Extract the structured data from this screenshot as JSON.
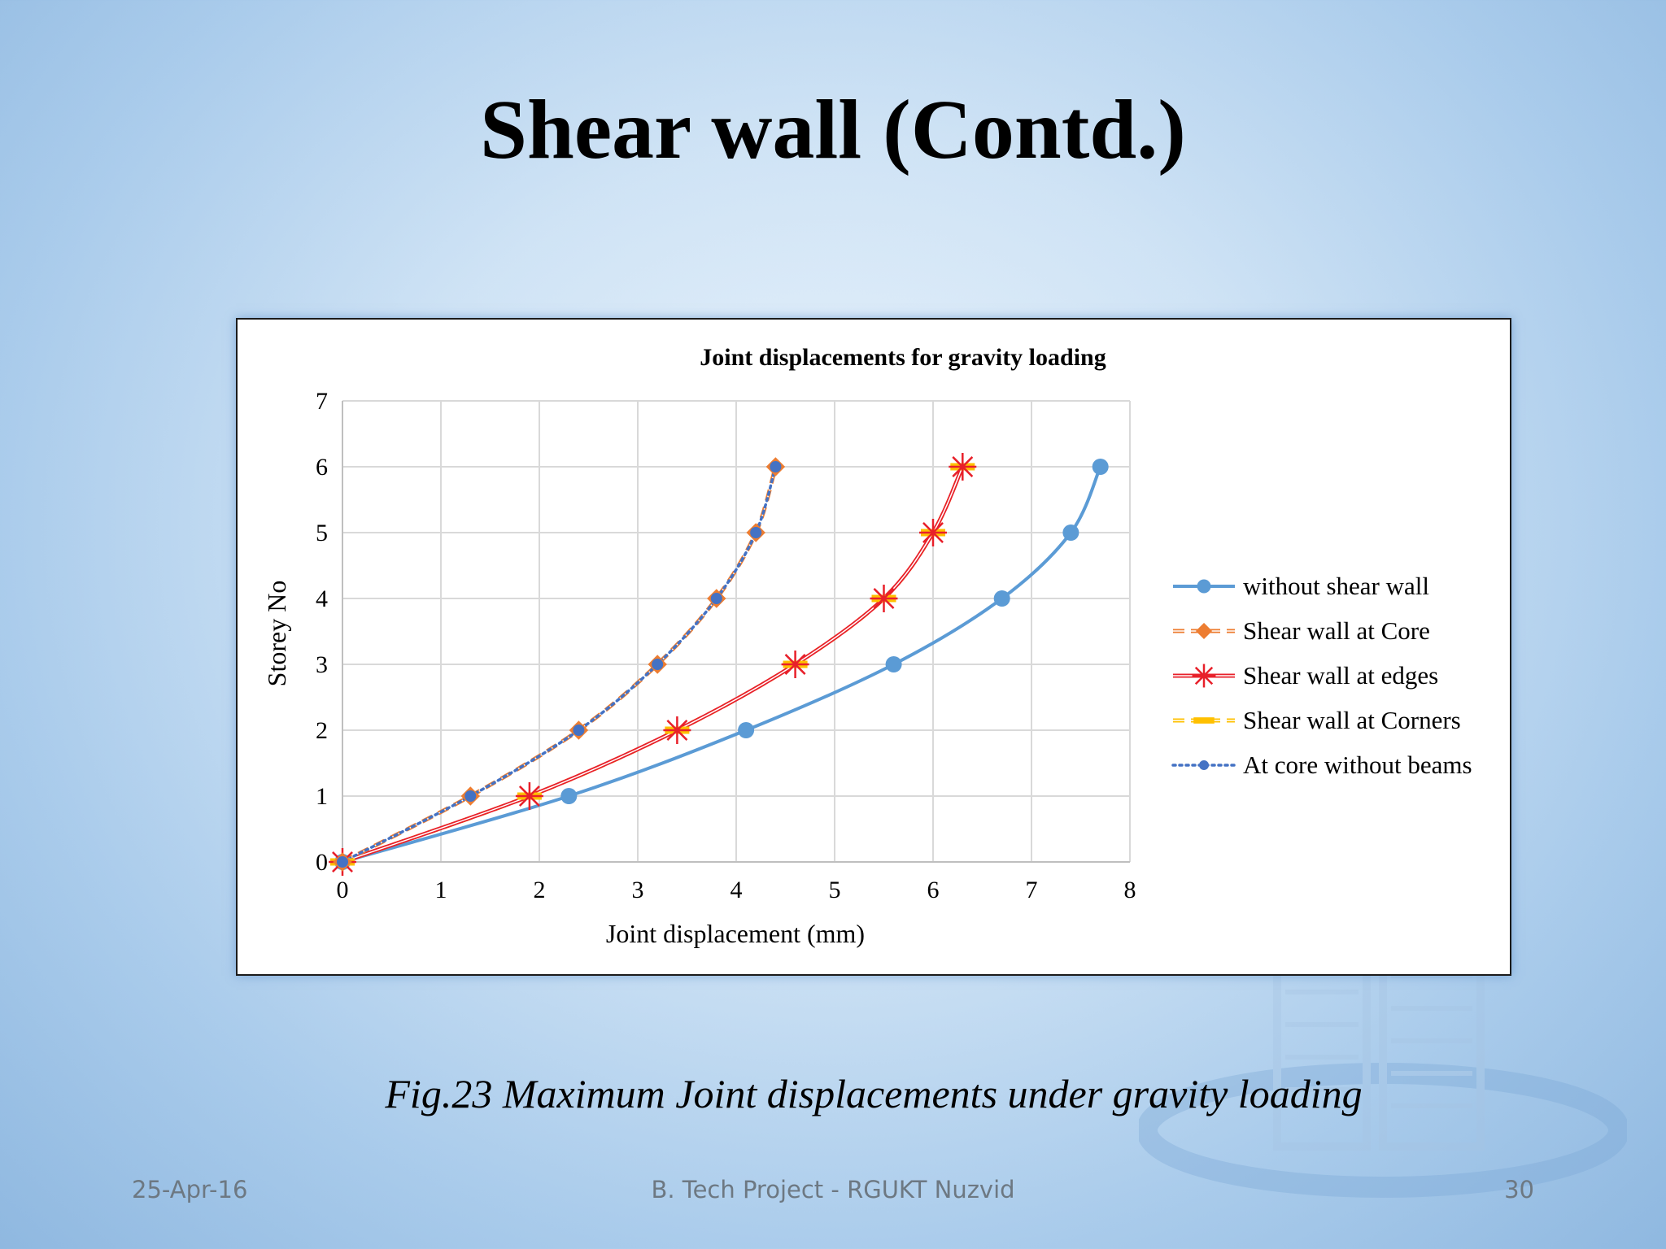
{
  "slide": {
    "title": "Shear wall (Contd.)",
    "caption": "Fig.23 Maximum Joint displacements under gravity loading",
    "footer_date": "25-Apr-16",
    "footer_center": "B. Tech Project - RGUKT Nuzvid",
    "page_number": "30"
  },
  "chart_data": {
    "type": "line",
    "title": "Joint displacements for gravity loading",
    "xlabel": "Joint displacement (mm)",
    "ylabel": "Storey No",
    "xlim": [
      0,
      8
    ],
    "ylim": [
      0,
      7
    ],
    "xticks": [
      "0",
      "1",
      "2",
      "3",
      "4",
      "5",
      "6",
      "7",
      "8"
    ],
    "yticks": [
      "0",
      "1",
      "2",
      "3",
      "4",
      "5",
      "6",
      "7"
    ],
    "grid": true,
    "legend_position": "right",
    "series": [
      {
        "name": "without shear wall",
        "color": "#5b9bd5",
        "marker": "circle",
        "line": "solid",
        "points": [
          [
            0,
            0
          ],
          [
            2.3,
            1
          ],
          [
            4.1,
            2
          ],
          [
            5.6,
            3
          ],
          [
            6.7,
            4
          ],
          [
            7.4,
            5
          ],
          [
            7.7,
            6
          ]
        ]
      },
      {
        "name": "Shear wall at Core",
        "color": "#ed7d31",
        "marker": "diamond",
        "line": "dashed-double",
        "points": [
          [
            0,
            0
          ],
          [
            1.3,
            1
          ],
          [
            2.4,
            2
          ],
          [
            3.2,
            3
          ],
          [
            3.8,
            4
          ],
          [
            4.2,
            5
          ],
          [
            4.4,
            6
          ]
        ]
      },
      {
        "name": "Shear wall at edges",
        "color": "#e8202a",
        "marker": "star",
        "line": "double",
        "points": [
          [
            0,
            0
          ],
          [
            1.9,
            1
          ],
          [
            3.4,
            2
          ],
          [
            4.6,
            3
          ],
          [
            5.5,
            4
          ],
          [
            6.0,
            5
          ],
          [
            6.3,
            6
          ]
        ]
      },
      {
        "name": "Shear wall at Corners",
        "color": "#ffc000",
        "marker": "dash",
        "line": "dashed-double",
        "points": [
          [
            0,
            0
          ],
          [
            1.9,
            1
          ],
          [
            3.4,
            2
          ],
          [
            4.6,
            3
          ],
          [
            5.5,
            4
          ],
          [
            6.0,
            5
          ],
          [
            6.3,
            6
          ]
        ]
      },
      {
        "name": "At core without beams",
        "color": "#4472c4",
        "marker": "circle-small",
        "line": "dotted",
        "points": [
          [
            0,
            0
          ],
          [
            1.3,
            1
          ],
          [
            2.4,
            2
          ],
          [
            3.2,
            3
          ],
          [
            3.8,
            4
          ],
          [
            4.2,
            5
          ],
          [
            4.4,
            6
          ]
        ]
      }
    ]
  }
}
